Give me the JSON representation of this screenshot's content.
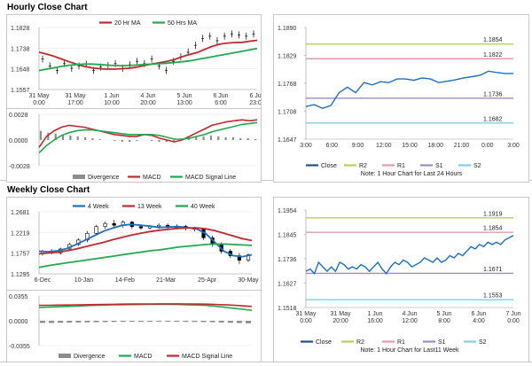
{
  "sections": {
    "hourly_title": "Hourly Close Chart",
    "weekly_title": "Weekly Close Chart"
  },
  "colors": {
    "red": "#c0282d",
    "green": "#22a84c",
    "blue": "#1f6fbf",
    "olive": "#b4d25a",
    "rose": "#e39aa7",
    "purple": "#9a8cc7",
    "cyan": "#7ed0e2",
    "navy": "#1f4e8a",
    "grey": "#8c8c8c"
  },
  "chart_data": [
    {
      "id": "hourly_price",
      "type": "line",
      "legend": [
        "20 Hr MA",
        "50 Hrs MA"
      ],
      "x_ticks": [
        "31 May\n0:00",
        "31 May\n17:00",
        "1 Jun\n10:00",
        "4 Jun\n20:00",
        "5 Jun\n13:00",
        "6 Jun\n6:00",
        "6 Jun\n23:00"
      ],
      "y_ticks": [
        "1.1828",
        "1.1738",
        "1.1648",
        "1.1557"
      ],
      "ylim": [
        1.1557,
        1.1828
      ],
      "x_count": 100,
      "series": [
        {
          "name": "20 Hr MA",
          "color": "#c0282d",
          "values": [
            1.172,
            1.1712,
            1.1702,
            1.169,
            1.1678,
            1.1668,
            1.1658,
            1.1652,
            1.1648,
            1.1646,
            1.1646,
            1.1648,
            1.165,
            1.1655,
            1.1662,
            1.1668,
            1.1674,
            1.168,
            1.1688,
            1.17,
            1.171,
            1.1718,
            1.1732,
            1.1745,
            1.1755,
            1.176,
            1.1762,
            1.1763,
            1.1768,
            1.1772
          ]
        },
        {
          "name": "50 Hrs MA",
          "color": "#22a84c",
          "values": [
            1.164,
            1.1646,
            1.1652,
            1.1658,
            1.1663,
            1.1666,
            1.1668,
            1.1668,
            1.1666,
            1.1664,
            1.1662,
            1.1661,
            1.1662,
            1.1664,
            1.1666,
            1.1668,
            1.167,
            1.1672,
            1.1675,
            1.1678,
            1.1682,
            1.1688,
            1.1694,
            1.17,
            1.1706,
            1.1712,
            1.1718,
            1.1724,
            1.173,
            1.1736
          ]
        },
        {
          "name": "Close",
          "color": "#000000",
          "values": [
            1.169,
            1.166,
            1.164,
            1.167,
            1.165,
            1.166,
            1.1668,
            1.164,
            1.1655,
            1.1662,
            1.167,
            1.165,
            1.1665,
            1.168,
            1.167,
            1.169,
            1.166,
            1.164,
            1.168,
            1.17,
            1.172,
            1.175,
            1.178,
            1.179,
            1.177,
            1.179,
            1.18,
            1.1795,
            1.179,
            1.18
          ]
        }
      ]
    },
    {
      "id": "hourly_macd",
      "type": "line",
      "legend": [
        "Divergence",
        "MACD",
        "MACD Signal Line"
      ],
      "y_ticks": [
        "0.0028",
        "0.0000",
        "-0.0028"
      ],
      "ylim": [
        -0.0028,
        0.0028
      ],
      "series": [
        {
          "name": "Divergence",
          "values": [
            0.001,
            0.0008,
            0.0007,
            0.0006,
            0.0005,
            0.0004,
            0.0003,
            0.0002,
            0.0001,
            0.0,
            -0.0001,
            -0.0002,
            -0.0002,
            -0.0001,
            0.0,
            -0.0001,
            -0.0002,
            -0.0002,
            -0.0001,
            0.0001,
            0.0002,
            0.0003,
            0.0004,
            0.0005,
            0.0004,
            0.0003,
            0.0003,
            0.0002,
            0.0002,
            0.0001
          ]
        },
        {
          "name": "MACD",
          "color": "#c0282d",
          "values": [
            -0.0008,
            0.0004,
            0.001,
            0.0014,
            0.0016,
            0.0015,
            0.0014,
            0.0012,
            0.001,
            0.0008,
            0.0006,
            0.0005,
            0.0004,
            0.0004,
            0.0006,
            0.0005,
            0.0002,
            0.0,
            -0.0002,
            0.0,
            0.0004,
            0.0008,
            0.0012,
            0.0016,
            0.0018,
            0.002,
            0.0021,
            0.0022,
            0.0021,
            0.0022
          ]
        },
        {
          "name": "MACD Signal Line",
          "color": "#22a84c",
          "values": [
            -0.0014,
            -0.0006,
            0.0,
            0.0005,
            0.0008,
            0.001,
            0.0011,
            0.0011,
            0.001,
            0.0009,
            0.0008,
            0.0007,
            0.0006,
            0.0006,
            0.0006,
            0.0006,
            0.0005,
            0.0003,
            0.0001,
            0.0001,
            0.0002,
            0.0004,
            0.0006,
            0.0009,
            0.0011,
            0.0013,
            0.0015,
            0.0017,
            0.0018,
            0.0019
          ]
        }
      ]
    },
    {
      "id": "hourly_levels",
      "type": "line",
      "x_ticks": [
        "3:00",
        "6:00",
        "9:00",
        "12:00",
        "15:00",
        "18:00",
        "21:00",
        "0:00",
        "3:00"
      ],
      "y_ticks": [
        "1.1890",
        "1.1829",
        "1.1768",
        "1.1708",
        "1.1647"
      ],
      "ylim": [
        1.1647,
        1.189
      ],
      "levels": [
        {
          "name": "R2",
          "value": 1.1854,
          "label": "1.1854",
          "color": "#b4d25a"
        },
        {
          "name": "R1",
          "value": 1.1822,
          "label": "1.1822",
          "color": "#e39aa7"
        },
        {
          "name": "S1",
          "value": 1.1736,
          "label": "1.1736",
          "color": "#9a8cc7"
        },
        {
          "name": "S2",
          "value": 1.1682,
          "label": "1.1682",
          "color": "#7ed0e2"
        }
      ],
      "close": [
        1.1718,
        1.1722,
        1.1714,
        1.172,
        1.1748,
        1.176,
        1.1748,
        1.177,
        1.1765,
        1.1772,
        1.177,
        1.1778,
        1.1778,
        1.1775,
        1.178,
        1.1778,
        1.177,
        1.1773,
        1.1776,
        1.178,
        1.1783,
        1.1786,
        1.1795,
        1.1792,
        1.179,
        1.179
      ],
      "legend": [
        "Close",
        "R2",
        "R1",
        "S1",
        "S2"
      ],
      "note": "Note: 1 Hour Chart for Last 24 Hours"
    },
    {
      "id": "weekly_price",
      "type": "line",
      "legend": [
        "4 Week",
        "13 Week",
        "40 Week"
      ],
      "x_ticks": [
        "6-Dec",
        "10-Jan",
        "14-Feb",
        "21-Mar",
        "25-Apr",
        "30-May"
      ],
      "y_ticks": [
        "1.2681",
        "1.2219",
        "1.1757",
        "1.1295"
      ],
      "ylim": [
        1.1295,
        1.2681
      ],
      "series": [
        {
          "name": "4 Week",
          "color": "#1f6fbf",
          "values": [
            1.18,
            1.179,
            1.181,
            1.186,
            1.195,
            1.205,
            1.215,
            1.225,
            1.232,
            1.238,
            1.24,
            1.238,
            1.236,
            1.233,
            1.234,
            1.235,
            1.233,
            1.23,
            1.22,
            1.2,
            1.18,
            1.17,
            1.168,
            1.172
          ]
        },
        {
          "name": "13 Week",
          "color": "#c0282d",
          "values": [
            1.174,
            1.176,
            1.178,
            1.181,
            1.185,
            1.19,
            1.195,
            1.2,
            1.206,
            1.211,
            1.216,
            1.22,
            1.224,
            1.227,
            1.229,
            1.231,
            1.232,
            1.232,
            1.23,
            1.226,
            1.22,
            1.214,
            1.208,
            1.204
          ]
        },
        {
          "name": "40 Week",
          "color": "#22a84c",
          "values": [
            1.144,
            1.148,
            1.151,
            1.154,
            1.157,
            1.16,
            1.163,
            1.166,
            1.169,
            1.172,
            1.175,
            1.178,
            1.181,
            1.183,
            1.186,
            1.189,
            1.191,
            1.193,
            1.195,
            1.196,
            1.196,
            1.195,
            1.194,
            1.193
          ]
        }
      ],
      "candles": [
        [
          1.175,
          1.18,
          1.17,
          1.183
        ],
        [
          1.18,
          1.176,
          1.173,
          1.185
        ],
        [
          1.176,
          1.185,
          1.172,
          1.188
        ],
        [
          1.185,
          1.195,
          1.182,
          1.199
        ],
        [
          1.195,
          1.205,
          1.192,
          1.209
        ],
        [
          1.205,
          1.22,
          1.2,
          1.225
        ],
        [
          1.22,
          1.235,
          1.215,
          1.239
        ],
        [
          1.235,
          1.242,
          1.23,
          1.246
        ],
        [
          1.242,
          1.238,
          1.234,
          1.25
        ],
        [
          1.238,
          1.245,
          1.233,
          1.249
        ],
        [
          1.245,
          1.235,
          1.23,
          1.248
        ],
        [
          1.235,
          1.232,
          1.228,
          1.24
        ],
        [
          1.232,
          1.235,
          1.229,
          1.239
        ],
        [
          1.235,
          1.238,
          1.23,
          1.242
        ],
        [
          1.238,
          1.233,
          1.228,
          1.242
        ],
        [
          1.233,
          1.236,
          1.229,
          1.24
        ],
        [
          1.236,
          1.231,
          1.226,
          1.239
        ],
        [
          1.231,
          1.229,
          1.224,
          1.235
        ],
        [
          1.229,
          1.21,
          1.205,
          1.232
        ],
        [
          1.21,
          1.195,
          1.19,
          1.215
        ],
        [
          1.195,
          1.18,
          1.175,
          1.2
        ],
        [
          1.18,
          1.17,
          1.165,
          1.185
        ],
        [
          1.17,
          1.16,
          1.152,
          1.176
        ],
        [
          1.16,
          1.172,
          1.156,
          1.175
        ]
      ]
    },
    {
      "id": "weekly_macd",
      "type": "line",
      "legend": [
        "Divergence",
        "MACD",
        "MACD Signal Line"
      ],
      "y_ticks": [
        "0.0355",
        "0.0000",
        "-0.0355"
      ],
      "ylim": [
        -0.0355,
        0.0355
      ],
      "series": [
        {
          "name": "Divergence",
          "values": [
            -0.003,
            -0.003,
            -0.0028,
            -0.0026,
            -0.0024,
            -0.0022,
            -0.002,
            -0.0018,
            -0.0016,
            -0.0015,
            -0.0014,
            -0.0013,
            -0.0012,
            -0.0012,
            -0.0013,
            -0.0014,
            -0.0015,
            -0.0016,
            -0.0018,
            -0.002,
            -0.0024,
            -0.0028,
            -0.0032,
            -0.0036
          ]
        },
        {
          "name": "MACD",
          "color": "#22a84c",
          "values": [
            0.019,
            0.0195,
            0.02,
            0.0205,
            0.021,
            0.0215,
            0.022,
            0.0225,
            0.0228,
            0.023,
            0.0232,
            0.0233,
            0.0234,
            0.0234,
            0.0234,
            0.0233,
            0.023,
            0.0226,
            0.022,
            0.021,
            0.0195,
            0.018,
            0.0165,
            0.015
          ]
        },
        {
          "name": "MACD Signal Line",
          "color": "#c0282d",
          "values": [
            0.022,
            0.0222,
            0.0224,
            0.0226,
            0.0228,
            0.023,
            0.0232,
            0.0234,
            0.0236,
            0.0238,
            0.0239,
            0.024,
            0.0241,
            0.0242,
            0.0242,
            0.0242,
            0.0241,
            0.024,
            0.0238,
            0.0235,
            0.023,
            0.0223,
            0.0214,
            0.0205
          ]
        }
      ]
    },
    {
      "id": "weekly_levels",
      "type": "line",
      "x_ticks": [
        "31 May\n0:00",
        "31 May\n20:00",
        "1 Jun\n16:00",
        "4 Jun\n12:00",
        "5 Jun\n8:00",
        "6 Jun\n4:00",
        "7 Jun\n0:00"
      ],
      "y_ticks": [
        "1.1954",
        "1.1845",
        "1.1736",
        "1.1627",
        "1.1518"
      ],
      "ylim": [
        1.1518,
        1.1954
      ],
      "levels": [
        {
          "name": "R2",
          "value": 1.1919,
          "label": "1.1919",
          "color": "#b4d25a"
        },
        {
          "name": "R1",
          "value": 1.1854,
          "label": "1.1854",
          "color": "#e39aa7"
        },
        {
          "name": "S1",
          "value": 1.1671,
          "label": "1.1671",
          "color": "#9a8cc7"
        },
        {
          "name": "S2",
          "value": 1.1553,
          "label": "1.1553",
          "color": "#7ed0e2"
        }
      ],
      "close": [
        1.168,
        1.169,
        1.167,
        1.172,
        1.17,
        1.168,
        1.17,
        1.168,
        1.172,
        1.171,
        1.169,
        1.17,
        1.169,
        1.171,
        1.17,
        1.168,
        1.17,
        1.172,
        1.169,
        1.167,
        1.17,
        1.172,
        1.171,
        1.173,
        1.172,
        1.17,
        1.171,
        1.172,
        1.174,
        1.173,
        1.172,
        1.174,
        1.172,
        1.173,
        1.175,
        1.174,
        1.176,
        1.175,
        1.177,
        1.179,
        1.178,
        1.18,
        1.179,
        1.181,
        1.18,
        1.181,
        1.18,
        1.182,
        1.183,
        1.184
      ],
      "legend": [
        "Close",
        "R2",
        "R1",
        "S1",
        "S2"
      ],
      "note": "Note: 1 Hour Chart for Last11 Week"
    }
  ]
}
